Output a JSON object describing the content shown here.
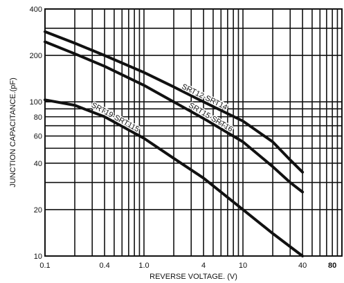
{
  "chart_data": {
    "type": "line",
    "title": "",
    "xlabel": "REVERSE VOLTAGE. (V)",
    "ylabel": "JUNCTION CAPACITANCE.(pF)",
    "x_scale": "log",
    "y_scale": "log",
    "xlim": [
      0.1,
      100
    ],
    "ylim": [
      10,
      400
    ],
    "grid": true,
    "x_ticks": [
      {
        "value": 0.1,
        "label": "0.1"
      },
      {
        "value": 0.4,
        "label": "0.4"
      },
      {
        "value": 1.0,
        "label": "1.0"
      },
      {
        "value": 4,
        "label": "4"
      },
      {
        "value": 10,
        "label": "10"
      },
      {
        "value": 40,
        "label": "40"
      },
      {
        "value": 80,
        "label": "80",
        "bold": true
      }
    ],
    "y_ticks": [
      {
        "value": 10,
        "label": "10"
      },
      {
        "value": 20,
        "label": "20"
      },
      {
        "value": 40,
        "label": "40"
      },
      {
        "value": 60,
        "label": "60"
      },
      {
        "value": 80,
        "label": "80"
      },
      {
        "value": 100,
        "label": "100"
      },
      {
        "value": 200,
        "label": "200"
      },
      {
        "value": 400,
        "label": "400"
      }
    ],
    "x_gridlines": [
      0.1,
      0.2,
      0.3,
      0.4,
      0.5,
      0.6,
      0.7,
      0.8,
      0.9,
      1,
      2,
      3,
      4,
      5,
      6,
      7,
      8,
      9,
      10,
      20,
      30,
      40,
      50,
      60,
      70,
      80,
      90,
      100
    ],
    "y_gridlines": [
      10,
      20,
      30,
      40,
      50,
      60,
      70,
      80,
      90,
      100,
      200,
      300,
      400
    ],
    "series": [
      {
        "name": "SRT12-SRT14",
        "x": [
          0.1,
          0.2,
          0.4,
          1,
          2,
          4,
          10,
          20,
          30,
          40
        ],
        "y": [
          285,
          240,
          200,
          155,
          125,
          100,
          75,
          55,
          42,
          35
        ]
      },
      {
        "name": "SRT15-SRT16",
        "x": [
          0.1,
          0.2,
          0.4,
          1,
          2,
          4,
          10,
          20,
          30,
          40
        ],
        "y": [
          245,
          205,
          170,
          128,
          100,
          78,
          55,
          38,
          30,
          26
        ]
      },
      {
        "name": "SRT19-SRT115",
        "x": [
          0.1,
          0.2,
          0.4,
          1,
          2,
          4,
          10,
          20,
          30,
          40
        ],
        "y": [
          103,
          95,
          80,
          58,
          43,
          32,
          20,
          14,
          11.5,
          10
        ]
      }
    ]
  }
}
